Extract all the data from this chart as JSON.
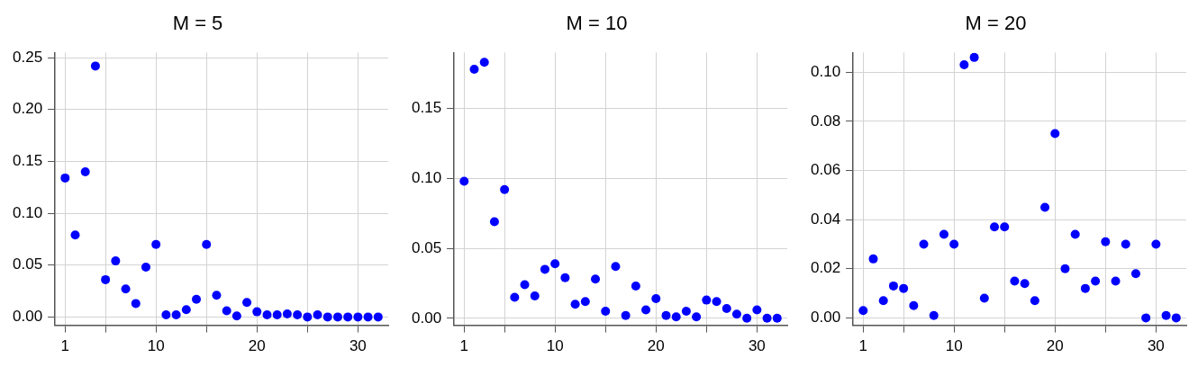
{
  "chart_data": [
    {
      "type": "scatter",
      "title": "M = 5",
      "x": [
        1,
        2,
        3,
        4,
        5,
        6,
        7,
        8,
        9,
        10,
        11,
        12,
        13,
        14,
        15,
        16,
        17,
        18,
        19,
        20,
        21,
        22,
        23,
        24,
        25,
        26,
        27,
        28,
        29,
        30,
        31,
        32
      ],
      "series": [
        {
          "color": "#0000ff",
          "values": [
            0.134,
            0.079,
            0.14,
            0.242,
            0.036,
            0.054,
            0.027,
            0.013,
            0.048,
            0.07,
            0.002,
            0.002,
            0.007,
            0.017,
            0.07,
            0.021,
            0.006,
            0.001,
            0.014,
            0.005,
            0.002,
            0.002,
            0.003,
            0.002,
            0.0,
            0.002,
            0.0,
            0.0,
            0.0,
            0.0,
            0.0,
            0.0
          ]
        }
      ],
      "xlim": [
        0,
        33
      ],
      "xticks": [
        1,
        {
          "value": 5,
          "label": null
        },
        10,
        {
          "value": 15,
          "label": null
        },
        20,
        {
          "value": 25,
          "label": null
        },
        30
      ],
      "ylim": [
        -0.008,
        0.255
      ],
      "yticks": [
        {
          "value": 0,
          "label": "0.00"
        },
        {
          "value": 0.05,
          "label": "0.05"
        },
        {
          "value": 0.1,
          "label": "0.10"
        },
        {
          "value": 0.15,
          "label": "0.15"
        },
        {
          "value": 0.2,
          "label": "0.20"
        },
        {
          "value": 0.25,
          "label": "0.25"
        }
      ],
      "grid": true,
      "marker": "circle",
      "legend": false
    },
    {
      "type": "scatter",
      "title": "M = 10",
      "x": [
        1,
        2,
        3,
        4,
        5,
        6,
        7,
        8,
        9,
        10,
        11,
        12,
        13,
        14,
        15,
        16,
        17,
        18,
        19,
        20,
        21,
        22,
        23,
        24,
        25,
        26,
        27,
        28,
        29,
        30,
        31,
        32
      ],
      "series": [
        {
          "color": "#0000ff",
          "values": [
            0.098,
            0.178,
            0.183,
            0.069,
            0.092,
            0.015,
            0.024,
            0.016,
            0.035,
            0.039,
            0.029,
            0.01,
            0.012,
            0.028,
            0.005,
            0.037,
            0.002,
            0.023,
            0.006,
            0.014,
            0.002,
            0.001,
            0.005,
            0.001,
            0.013,
            0.012,
            0.007,
            0.003,
            0.0,
            0.006,
            0.0,
            0.0
          ]
        }
      ],
      "xlim": [
        0,
        33
      ],
      "xticks": [
        1,
        {
          "value": 5,
          "label": null
        },
        10,
        {
          "value": 15,
          "label": null
        },
        20,
        {
          "value": 25,
          "label": null
        },
        30
      ],
      "ylim": [
        -0.005,
        0.19
      ],
      "yticks": [
        {
          "value": 0,
          "label": "0.00"
        },
        {
          "value": 0.05,
          "label": "0.05"
        },
        {
          "value": 0.1,
          "label": "0.10"
        },
        {
          "value": 0.15,
          "label": "0.15"
        }
      ],
      "grid": true,
      "marker": "circle",
      "legend": false
    },
    {
      "type": "scatter",
      "title": "M = 20",
      "x": [
        1,
        2,
        3,
        4,
        5,
        6,
        7,
        8,
        9,
        10,
        11,
        12,
        13,
        14,
        15,
        16,
        17,
        18,
        19,
        20,
        21,
        22,
        23,
        24,
        25,
        26,
        27,
        28,
        29,
        30,
        31,
        32
      ],
      "series": [
        {
          "color": "#0000ff",
          "values": [
            0.003,
            0.024,
            0.007,
            0.013,
            0.012,
            0.005,
            0.03,
            0.001,
            0.034,
            0.03,
            0.103,
            0.106,
            0.008,
            0.037,
            0.037,
            0.015,
            0.014,
            0.007,
            0.045,
            0.075,
            0.02,
            0.034,
            0.012,
            0.015,
            0.031,
            0.015,
            0.03,
            0.018,
            0.0,
            0.03,
            0.001,
            0.0
          ]
        }
      ],
      "xlim": [
        0,
        33
      ],
      "xticks": [
        1,
        {
          "value": 5,
          "label": null
        },
        10,
        {
          "value": 15,
          "label": null
        },
        20,
        {
          "value": 25,
          "label": null
        },
        30
      ],
      "ylim": [
        -0.003,
        0.108
      ],
      "yticks": [
        {
          "value": 0,
          "label": "0.00"
        },
        {
          "value": 0.02,
          "label": "0.02"
        },
        {
          "value": 0.04,
          "label": "0.04"
        },
        {
          "value": 0.06,
          "label": "0.06"
        },
        {
          "value": 0.08,
          "label": "0.08"
        },
        {
          "value": 0.1,
          "label": "0.10"
        }
      ],
      "grid": true,
      "marker": "circle",
      "legend": false
    }
  ]
}
